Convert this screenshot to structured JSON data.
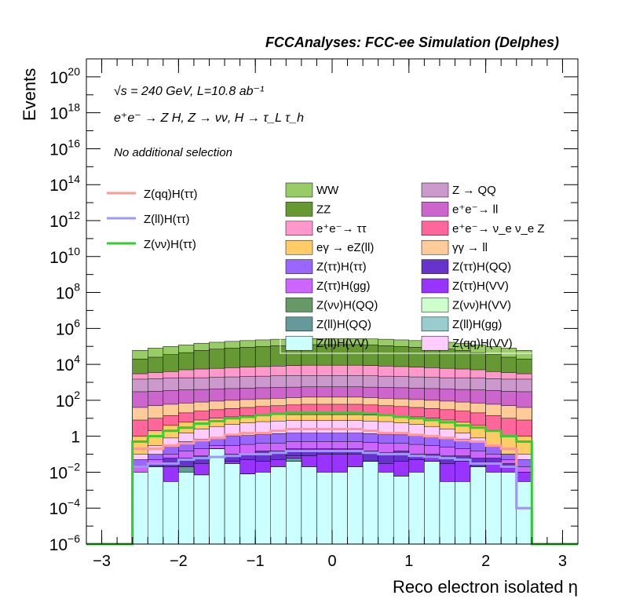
{
  "header": "FCCAnalyses: FCC-ee Simulation (Delphes)",
  "annotations": {
    "energy": "√s = 240 GeV, L=10.8 ab⁻¹",
    "process": "e⁺e⁻ → Z H, Z → νν, H → τ_L τ_h",
    "selection": "No additional selection"
  },
  "chart_data": {
    "type": "histogram",
    "title": "",
    "xlabel": "Reco electron isolated η",
    "ylabel": "Events",
    "xlim": [
      -3.2,
      3.2
    ],
    "ylim": [
      1e-06,
      1e+21
    ],
    "y_scale": "log",
    "x_ticks": [
      -3,
      -2,
      -1,
      0,
      1,
      2,
      3
    ],
    "x_tick_labels": [
      "−3",
      "−2",
      "−1",
      "0",
      "1",
      "2",
      "3"
    ],
    "y_ticks": [
      1e-06,
      0.0001,
      0.01,
      1,
      100.0,
      10000.0,
      1000000.0,
      100000000.0,
      10000000000.0,
      1000000000000.0,
      100000000000000.0,
      1e+16,
      1e+18,
      1e+20
    ],
    "y_tick_labels": [
      {
        "base": "10",
        "exp": "−6"
      },
      {
        "base": "10",
        "exp": "−4"
      },
      {
        "base": "10",
        "exp": "−2"
      },
      {
        "base": "1",
        "exp": ""
      },
      {
        "base": "10",
        "exp": "2"
      },
      {
        "base": "10",
        "exp": "4"
      },
      {
        "base": "10",
        "exp": "6"
      },
      {
        "base": "10",
        "exp": "8"
      },
      {
        "base": "10",
        "exp": "10"
      },
      {
        "base": "10",
        "exp": "12"
      },
      {
        "base": "10",
        "exp": "14"
      },
      {
        "base": "10",
        "exp": "16"
      },
      {
        "base": "10",
        "exp": "18"
      },
      {
        "base": "10",
        "exp": "20"
      }
    ],
    "x_edges": [
      -2.6,
      -2.4,
      -2.2,
      -2.0,
      -1.8,
      -1.6,
      -1.4,
      -1.2,
      -1.0,
      -0.8,
      -0.6,
      -0.4,
      -0.2,
      0.0,
      0.2,
      0.4,
      0.6,
      0.8,
      1.0,
      1.2,
      1.4,
      1.6,
      1.8,
      2.0,
      2.2,
      2.4,
      2.6
    ],
    "stack_totals": [
      {
        "name": "Z(ll)H(VV)",
        "color": "#ccffff",
        "values": [
          0.01,
          0.02,
          0.003,
          0.01,
          0.007,
          0.2,
          0.03,
          0.008,
          0.01,
          0.02,
          0.04,
          0.02,
          0.01,
          0.01,
          0.02,
          0.04,
          0.01,
          0.006,
          0.01,
          0.04,
          0.003,
          0.003,
          0.02,
          0.01,
          0.01,
          0.003
        ]
      },
      {
        "name": "Z(ll)H(gg)",
        "color": "#99cccc",
        "values": [
          0.01,
          0.02,
          0.003,
          0.01,
          0.007,
          0.2,
          0.03,
          0.008,
          0.01,
          0.02,
          0.04,
          0.02,
          0.01,
          0.01,
          0.02,
          0.04,
          0.01,
          0.006,
          0.01,
          0.04,
          0.003,
          0.003,
          0.02,
          0.01,
          0.01,
          0.003
        ]
      },
      {
        "name": "Z(ll)H(QQ)",
        "color": "#669999",
        "values": [
          0.01,
          0.02,
          0.003,
          0.02,
          0.007,
          0.2,
          0.03,
          0.008,
          0.01,
          0.02,
          0.06,
          0.02,
          0.01,
          0.01,
          0.02,
          0.04,
          0.01,
          0.006,
          0.01,
          0.04,
          0.003,
          0.003,
          0.02,
          0.01,
          0.01,
          0.003
        ]
      },
      {
        "name": "Z(νν)H(VV)",
        "color": "#ccffcc",
        "values": [
          0.01,
          0.02,
          0.003,
          0.02,
          0.007,
          0.2,
          0.03,
          0.008,
          0.01,
          0.02,
          0.06,
          0.02,
          0.01,
          0.01,
          0.02,
          0.04,
          0.01,
          0.006,
          0.01,
          0.04,
          0.003,
          0.003,
          0.02,
          0.01,
          0.01,
          0.003
        ]
      },
      {
        "name": "Z(νν)H(QQ)",
        "color": "#669966",
        "values": [
          0.01,
          0.02,
          0.003,
          0.02,
          0.007,
          0.2,
          0.03,
          0.008,
          0.01,
          0.02,
          0.06,
          0.02,
          0.01,
          0.01,
          0.02,
          0.04,
          0.01,
          0.006,
          0.01,
          0.04,
          0.003,
          0.003,
          0.02,
          0.01,
          0.01,
          0.003
        ]
      },
      {
        "name": "Z(ττ)H(VV)",
        "color": "#9933ff",
        "values": [
          0.01,
          0.02,
          0.02,
          0.02,
          0.03,
          0.2,
          0.04,
          0.05,
          0.04,
          0.05,
          0.08,
          0.08,
          0.1,
          0.1,
          0.1,
          0.04,
          0.03,
          0.04,
          0.05,
          0.06,
          0.03,
          0.04,
          0.02,
          0.03,
          0.02,
          0.01
        ]
      },
      {
        "name": "Z(ττ)H(QQ)",
        "color": "#6633cc",
        "values": [
          0.01,
          0.03,
          0.06,
          0.06,
          0.08,
          0.2,
          0.1,
          0.1,
          0.15,
          0.15,
          0.2,
          0.2,
          0.2,
          0.2,
          0.2,
          0.15,
          0.12,
          0.15,
          0.1,
          0.1,
          0.08,
          0.08,
          0.06,
          0.06,
          0.03,
          0.01
        ]
      },
      {
        "name": "Z(ττ)H(gg)",
        "color": "#cc66ff",
        "values": [
          0.02,
          0.05,
          0.1,
          0.15,
          0.2,
          0.3,
          0.3,
          0.35,
          0.4,
          0.4,
          0.5,
          0.5,
          0.5,
          0.5,
          0.5,
          0.45,
          0.4,
          0.4,
          0.35,
          0.3,
          0.25,
          0.2,
          0.15,
          0.1,
          0.05,
          0.02
        ]
      },
      {
        "name": "Z(ττ)H(ττ)",
        "color": "#9966ff",
        "values": [
          0.05,
          0.1,
          0.3,
          0.5,
          0.7,
          0.9,
          1.0,
          1.1,
          1.3,
          1.4,
          1.5,
          1.5,
          1.5,
          1.5,
          1.5,
          1.4,
          1.3,
          1.2,
          1.1,
          1.0,
          0.9,
          0.7,
          0.5,
          0.3,
          0.1,
          0.05
        ]
      },
      {
        "name": "Z(qq)H(VV)",
        "color": "#ffccff",
        "values": [
          0.1,
          0.3,
          0.8,
          1.5,
          2.5,
          3.5,
          4.5,
          5.5,
          6.5,
          7.0,
          7.5,
          7.5,
          7.5,
          7.5,
          7.5,
          7.0,
          6.5,
          5.5,
          4.5,
          3.5,
          2.5,
          1.5,
          0.8,
          0.3,
          0.1,
          0.1
        ]
      },
      {
        "name": "eγ → eZ(ll)",
        "color": "#ffcc66",
        "values": [
          1,
          2,
          4,
          6,
          8,
          10,
          12,
          14,
          15,
          16,
          16,
          16,
          16,
          16,
          16,
          15,
          14,
          13,
          12,
          10,
          8,
          6,
          4,
          2,
          1,
          1
        ]
      },
      {
        "name": "e⁺e⁻ → ν_e ν_e Z",
        "color": "#ff6699",
        "values": [
          8,
          10,
          14,
          20,
          25,
          30,
          35,
          40,
          45,
          50,
          55,
          60,
          60,
          60,
          60,
          55,
          50,
          45,
          40,
          35,
          30,
          25,
          20,
          14,
          10,
          8
        ]
      },
      {
        "name": "γγ → ll",
        "color": "#ffcc99",
        "values": [
          40,
          50,
          60,
          70,
          80,
          90,
          100,
          110,
          120,
          130,
          140,
          150,
          150,
          150,
          150,
          140,
          130,
          120,
          110,
          100,
          90,
          80,
          70,
          60,
          50,
          40
        ]
      },
      {
        "name": "e⁺e⁻ → ll",
        "color": "#cc66cc",
        "values": [
          300,
          320,
          350,
          380,
          400,
          420,
          450,
          480,
          500,
          520,
          540,
          560,
          560,
          560,
          560,
          540,
          520,
          500,
          480,
          450,
          420,
          400,
          380,
          350,
          320,
          300
        ]
      },
      {
        "name": "Z → QQ",
        "color": "#cc99cc",
        "values": [
          1500,
          1600,
          1700,
          1800,
          1800,
          1900,
          2000,
          2100,
          2200,
          2300,
          2400,
          2400,
          2400,
          2400,
          2400,
          2300,
          2200,
          2100,
          2000,
          1900,
          1800,
          1800,
          1700,
          1600,
          1500,
          1500
        ]
      },
      {
        "name": "e⁺e⁻ → ττ",
        "color": "#ff99cc",
        "values": [
          3000,
          3500,
          4000,
          5000,
          5500,
          6000,
          6500,
          7000,
          7500,
          8000,
          8500,
          9000,
          9000,
          9000,
          9000,
          8500,
          8000,
          7500,
          7000,
          6500,
          6000,
          5500,
          5000,
          4000,
          3500,
          3000
        ]
      },
      {
        "name": "ZZ",
        "color": "#669933",
        "values": [
          20000,
          25000,
          35000,
          45000,
          60000,
          70000,
          80000,
          90000,
          100000,
          110000,
          120000,
          125000,
          125000,
          125000,
          125000,
          120000,
          110000,
          100000,
          90000,
          80000,
          70000,
          60000,
          45000,
          35000,
          25000,
          20000
        ]
      },
      {
        "name": "WW",
        "color": "#99cc66",
        "values": [
          60000,
          80000,
          100000,
          120000,
          150000,
          170000,
          190000,
          210000,
          230000,
          250000,
          260000,
          270000,
          270000,
          270000,
          270000,
          260000,
          250000,
          230000,
          210000,
          190000,
          170000,
          150000,
          120000,
          100000,
          80000,
          60000
        ]
      }
    ],
    "overlay_series": [
      {
        "name": "Z(qq)H(ττ)",
        "color": "#ff9999",
        "values": [
          0.2,
          0.2,
          0.3,
          0.4,
          0.6,
          0.8,
          1.2,
          1.5,
          1.5,
          2.0,
          2.5,
          2.5,
          2.5,
          2.5,
          2.5,
          2.0,
          1.5,
          1.5,
          1.2,
          1.0,
          0.8,
          0.6,
          0.5,
          0.3,
          0.2,
          0.0001
        ]
      },
      {
        "name": "Z(ll)H(ττ)",
        "color": "#9999ff",
        "values": [
          0.02,
          0.03,
          0.03,
          0.05,
          0.06,
          0.07,
          0.08,
          0.1,
          0.1,
          0.12,
          0.15,
          0.15,
          0.15,
          0.15,
          0.15,
          0.12,
          0.1,
          0.1,
          0.08,
          0.07,
          0.06,
          0.05,
          0.03,
          0.03,
          0.02,
          0.0001
        ]
      },
      {
        "name": "Z(νν)H(ττ)",
        "color": "#33cc33",
        "values": [
          0.5,
          1.0,
          2.0,
          3.0,
          5.0,
          7.0,
          10,
          12,
          15,
          18,
          20,
          20,
          20,
          20,
          20,
          18,
          15,
          12,
          10,
          8,
          6,
          4,
          3,
          2,
          1.0,
          0.5
        ]
      }
    ],
    "legend": {
      "lines": [
        {
          "name": "Z(qq)H(ττ)",
          "color": "#ff9999"
        },
        {
          "name": "Z(ll)H(ττ)",
          "color": "#9999ff"
        },
        {
          "name": "Z(νν)H(ττ)",
          "color": "#33cc33"
        }
      ],
      "boxes": [
        {
          "name": "WW",
          "color": "#99cc66"
        },
        {
          "name": "Z → QQ",
          "color": "#cc99cc"
        },
        {
          "name": "ZZ",
          "color": "#669933"
        },
        {
          "name": "e⁺e⁻→ ll",
          "color": "#cc66cc"
        },
        {
          "name": "e⁺e⁻→ ττ",
          "color": "#ff99cc"
        },
        {
          "name": "e⁺e⁻→ ν_e ν_e Z",
          "color": "#ff6699"
        },
        {
          "name": "eγ → eZ(ll)",
          "color": "#ffcc66"
        },
        {
          "name": "γγ → ll",
          "color": "#ffcc99"
        },
        {
          "name": "Z(ττ)H(ττ)",
          "color": "#9966ff"
        },
        {
          "name": "Z(ττ)H(QQ)",
          "color": "#6633cc"
        },
        {
          "name": "Z(ττ)H(gg)",
          "color": "#cc66ff"
        },
        {
          "name": "Z(ττ)H(VV)",
          "color": "#9933ff"
        },
        {
          "name": "Z(νν)H(QQ)",
          "color": "#669966"
        },
        {
          "name": "Z(νν)H(VV)",
          "color": "#ccffcc"
        },
        {
          "name": "Z(ll)H(QQ)",
          "color": "#669999"
        },
        {
          "name": "Z(ll)H(gg)",
          "color": "#99cccc"
        },
        {
          "name": "Z(ll)H(VV)",
          "color": "#ccffff"
        },
        {
          "name": "Z(qq)H(VV)",
          "color": "#ffccff"
        }
      ]
    }
  }
}
